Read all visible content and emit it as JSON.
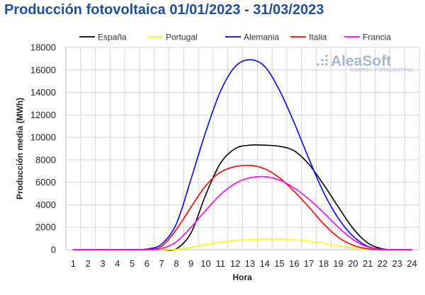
{
  "chart_data": {
    "type": "line",
    "title": "Producción fotovoltaica 01/01/2023 - 31/03/2023",
    "xlabel": "Hora",
    "ylabel": "Producción media (MWh)",
    "x": [
      1,
      2,
      3,
      4,
      5,
      6,
      7,
      8,
      9,
      10,
      11,
      12,
      13,
      14,
      15,
      16,
      17,
      18,
      19,
      20,
      21,
      22,
      23,
      24
    ],
    "xlim": [
      1,
      24
    ],
    "ylim": [
      0,
      18000
    ],
    "yticks": [
      0,
      2000,
      4000,
      6000,
      8000,
      10000,
      12000,
      14000,
      16000,
      18000
    ],
    "grid": true,
    "legend_position": "top",
    "series": [
      {
        "name": "España",
        "color": "#000000",
        "values": [
          0,
          0,
          0,
          0,
          0,
          0,
          0,
          80,
          1500,
          4900,
          7700,
          9000,
          9300,
          9300,
          9200,
          8800,
          7600,
          5800,
          3800,
          1900,
          600,
          80,
          0,
          0
        ]
      },
      {
        "name": "Portugal",
        "color": "#ffff00",
        "values": [
          0,
          0,
          0,
          0,
          0,
          0,
          0,
          30,
          200,
          450,
          670,
          830,
          900,
          950,
          950,
          880,
          760,
          570,
          350,
          170,
          50,
          10,
          0,
          0
        ]
      },
      {
        "name": "Alemania",
        "color": "#0000ff",
        "values": [
          0,
          0,
          0,
          0,
          0,
          60,
          500,
          2300,
          6300,
          10500,
          14100,
          16300,
          16900,
          16300,
          14200,
          11300,
          8100,
          5100,
          2800,
          1200,
          300,
          30,
          0,
          0
        ]
      },
      {
        "name": "Italia",
        "color": "#ff0000",
        "values": [
          0,
          0,
          0,
          0,
          0,
          20,
          300,
          1800,
          3800,
          5700,
          6900,
          7400,
          7500,
          7200,
          6400,
          5200,
          3800,
          2300,
          1100,
          400,
          80,
          0,
          0,
          0
        ]
      },
      {
        "name": "Francia",
        "color": "#ff00ff",
        "values": [
          0,
          0,
          0,
          0,
          0,
          0,
          100,
          700,
          2000,
          3500,
          4900,
          5900,
          6400,
          6500,
          6200,
          5500,
          4500,
          3300,
          2000,
          900,
          250,
          30,
          0,
          0
        ]
      }
    ]
  },
  "watermark": {
    "brand": "AleaSoft",
    "tagline": "ENERGY FORECASTING"
  }
}
